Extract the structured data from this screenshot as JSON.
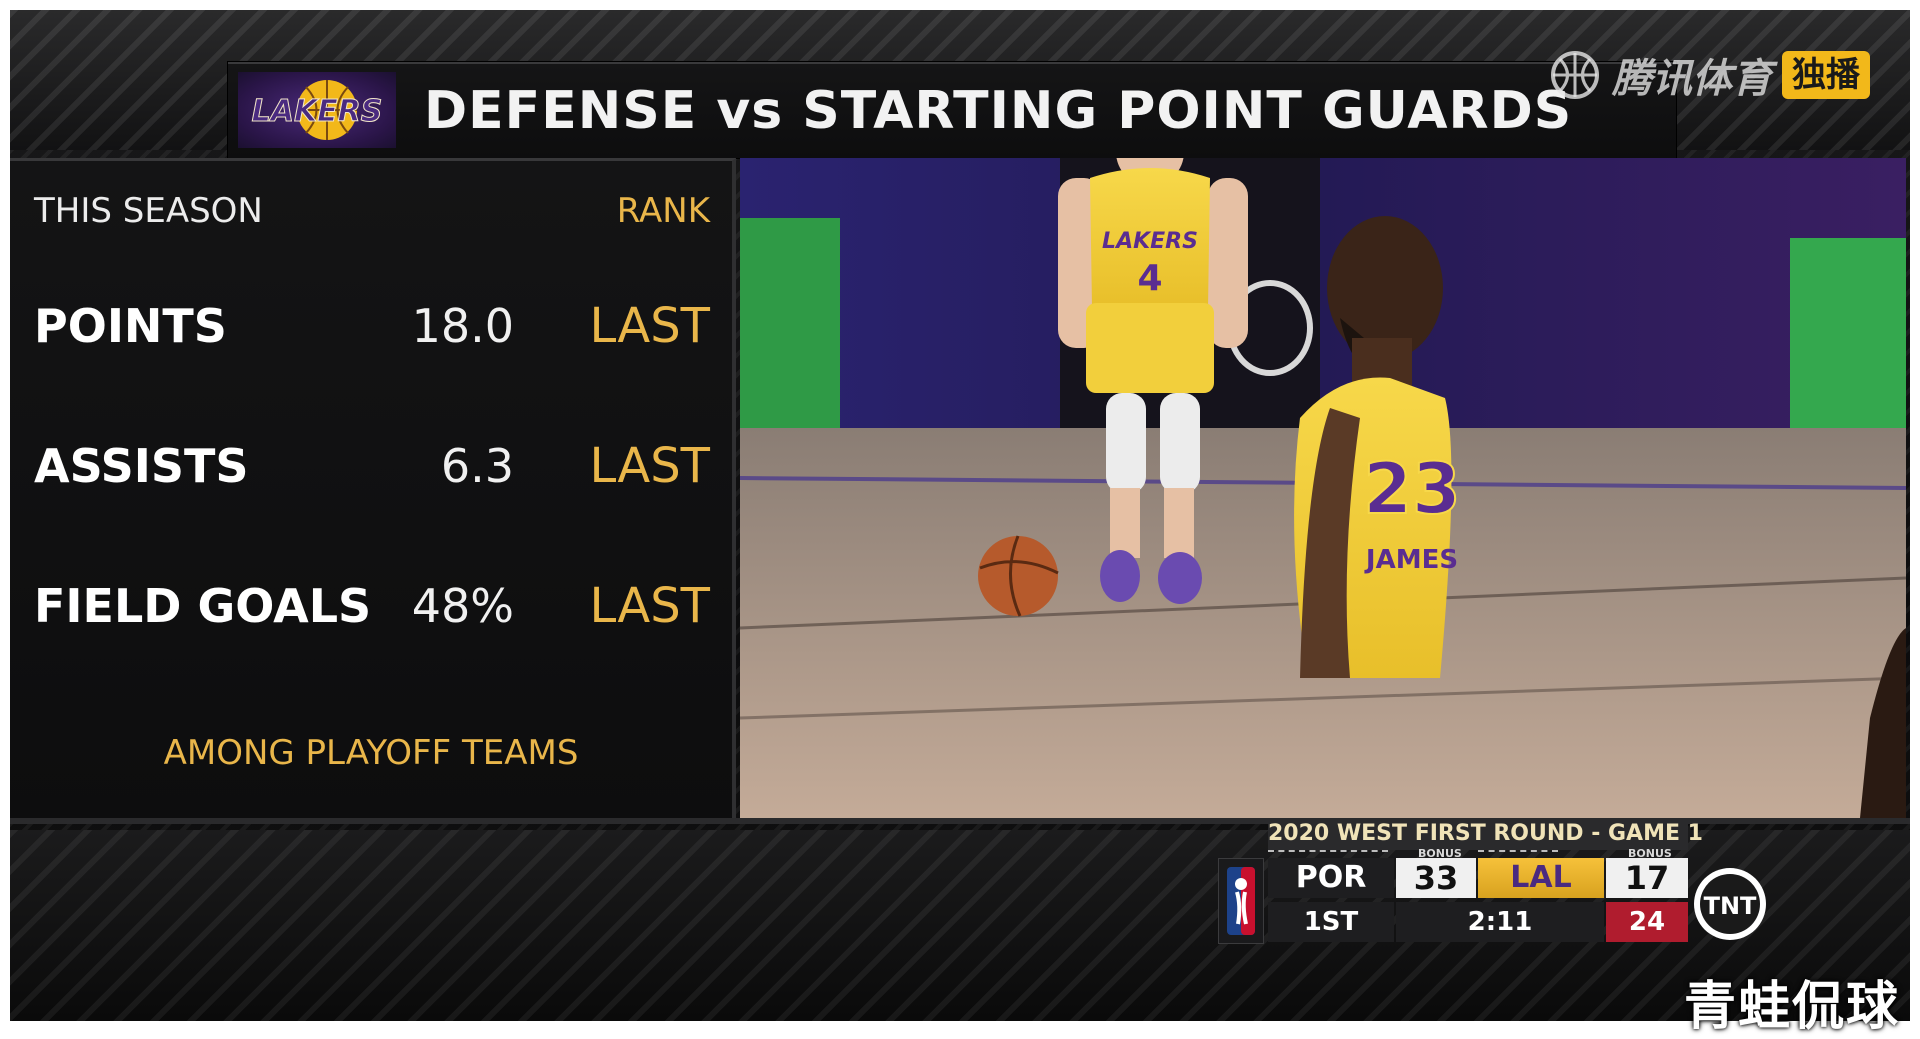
{
  "title_bar": {
    "team_logo_text": "LAKERS",
    "title": "DEFENSE vs STARTING POINT GUARDS"
  },
  "watermark_top": {
    "text": "腾讯体育",
    "badge": "独播"
  },
  "stats": {
    "header_left": "THIS SEASON",
    "header_right": "RANK",
    "rows": [
      {
        "label": "POINTS",
        "value": "18.0",
        "rank": "LAST"
      },
      {
        "label": "ASSISTS",
        "value": "6.3",
        "rank": "LAST"
      },
      {
        "label": "FIELD GOALS",
        "value": "48%",
        "rank": "LAST"
      }
    ],
    "footnote": "AMONG PLAYOFF TEAMS"
  },
  "scoreboard": {
    "series": "2020 WEST FIRST ROUND - GAME 1",
    "away_team": "POR",
    "away_score": "33",
    "away_bonus": "BONUS",
    "home_team": "LAL",
    "home_score": "17",
    "home_bonus": "BONUS",
    "period": "1ST",
    "clock": "2:11",
    "shot_clock": "24",
    "network": "TNT"
  },
  "jerseys": {
    "guard_number": "4",
    "guard_team": "LAKERS",
    "forward_number": "23",
    "forward_name": "JAMES"
  },
  "watermark_bottom": {
    "text": "青蛙侃球"
  },
  "colors": {
    "gold": "#e9b64a",
    "lakers_purple": "#4a2a80",
    "lakers_gold": "#f6c13a",
    "shot_clock_red": "#b01c2e"
  }
}
